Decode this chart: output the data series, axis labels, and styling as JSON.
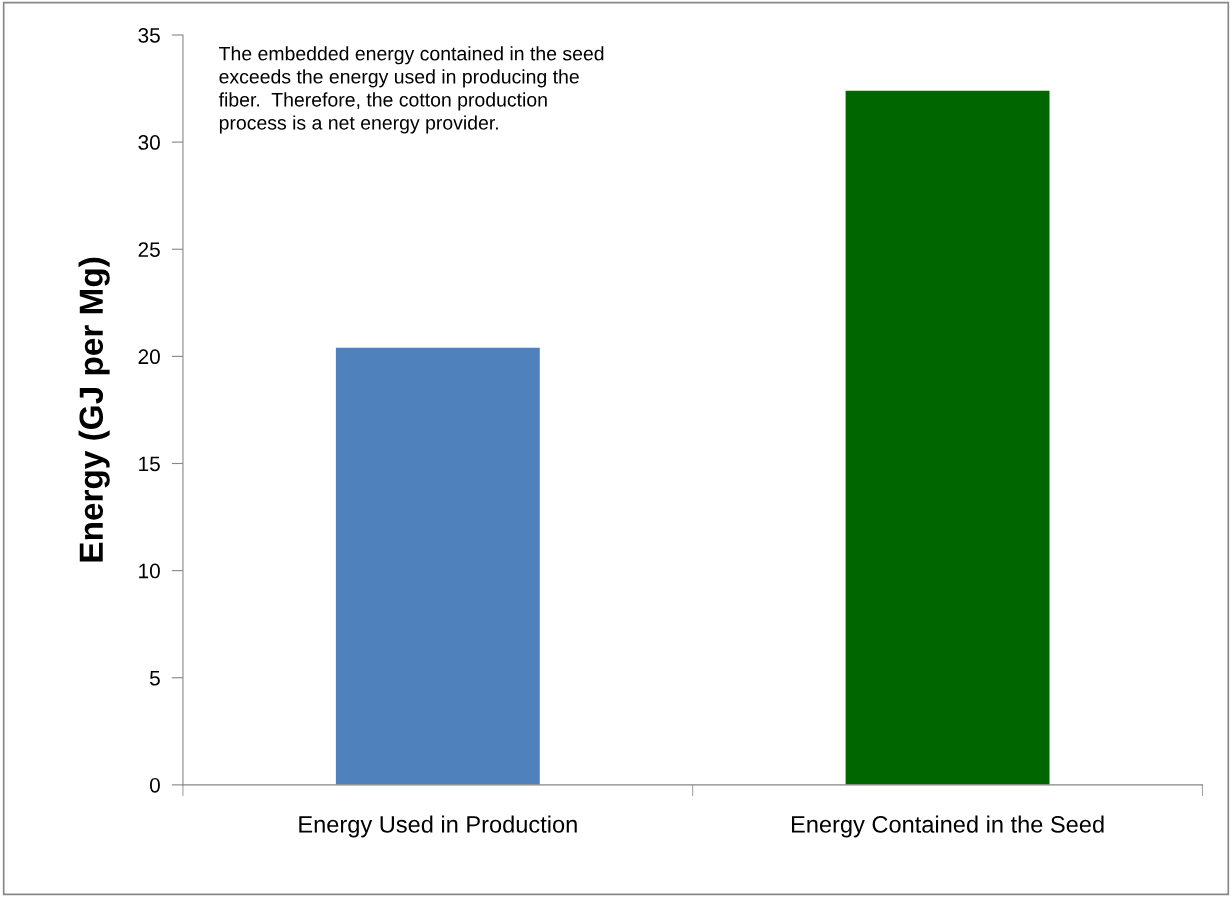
{
  "chart_data": {
    "type": "bar",
    "ylabel": "Energy (GJ per Mg)",
    "categories": [
      "Energy Used in Production",
      "Energy Contained in the Seed"
    ],
    "values": [
      20.4,
      32.4
    ],
    "colors": [
      "#4f81bd",
      "#006600"
    ],
    "ylim": [
      0,
      35
    ],
    "yticks": [
      0,
      5,
      10,
      15,
      20,
      25,
      30,
      35
    ],
    "grid": false,
    "annotations": [
      "The embedded energy contained in the seed\nexceeds the energy used in producing the\nfiber.  Therefore, the cotton production\nprocess is a net energy provider."
    ]
  }
}
